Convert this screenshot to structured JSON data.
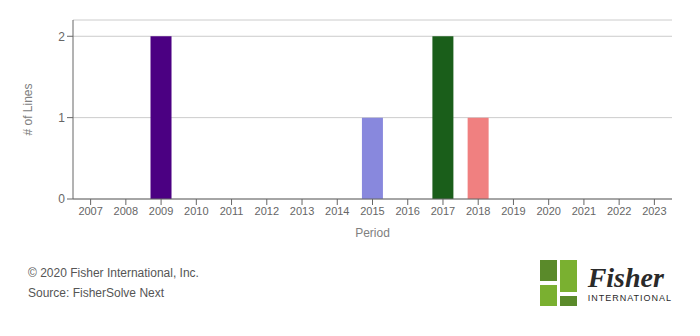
{
  "chart_data": {
    "type": "bar",
    "xlabel": "Period",
    "ylabel": "# of Lines",
    "categories": [
      "2007",
      "2008",
      "2009",
      "2010",
      "2011",
      "2012",
      "2013",
      "2014",
      "2015",
      "2016",
      "2017",
      "2018",
      "2019",
      "2020",
      "2021",
      "2022",
      "2023"
    ],
    "values": [
      0,
      0,
      2,
      0,
      0,
      0,
      0,
      0,
      1,
      0,
      2,
      1,
      0,
      0,
      0,
      0,
      0
    ],
    "colors": [
      "#ffffff",
      "#ffffff",
      "#4b0082",
      "#ffffff",
      "#ffffff",
      "#ffffff",
      "#ffffff",
      "#ffffff",
      "#8888dd",
      "#ffffff",
      "#1a5e1a",
      "#f08080",
      "#ffffff",
      "#ffffff",
      "#ffffff",
      "#ffffff",
      "#ffffff"
    ],
    "ylim": [
      0,
      2.2
    ],
    "yticks": [
      0,
      1,
      2
    ],
    "grid": true,
    "annotations": [
      "© 2020 Fisher International, Inc.",
      "Source: FisherSolve Next",
      "Fisher",
      "INTERNATIONAL"
    ]
  }
}
